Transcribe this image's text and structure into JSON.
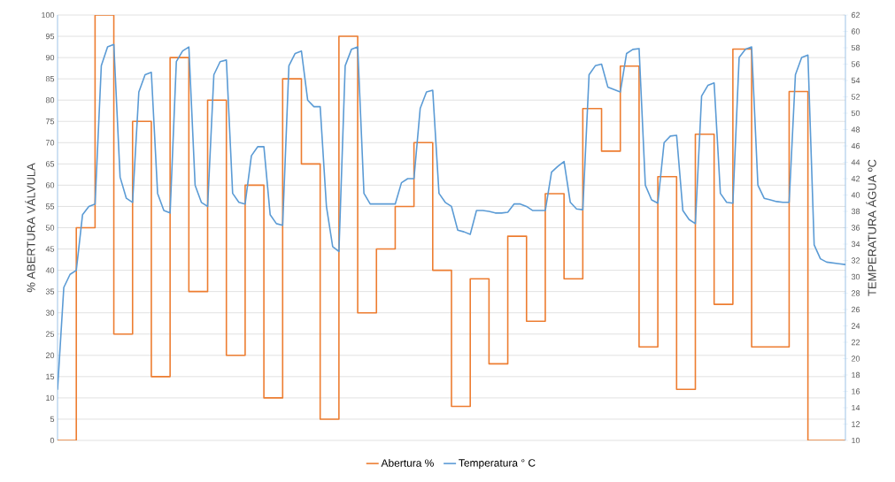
{
  "chart_data": {
    "type": "line",
    "ylabel": "% ABERTURA VÁLVULA",
    "y2label": "TEMPERATURA ÁGUA ºC",
    "categories": [
      null,
      null,
      null,
      null,
      null,
      null,
      null,
      null,
      null,
      null,
      null,
      null,
      null,
      null,
      null,
      null,
      null,
      null,
      null,
      null,
      null,
      null,
      null,
      null,
      null,
      null,
      null,
      null,
      null,
      null,
      null,
      null,
      null,
      null,
      null,
      null,
      null,
      null,
      null,
      null,
      null,
      null,
      null,
      null,
      null,
      null,
      null,
      null,
      null,
      null,
      null,
      null,
      null,
      null,
      null,
      null,
      null,
      null,
      null,
      null,
      null,
      null,
      null,
      null,
      null,
      null,
      null,
      null,
      null,
      null,
      null,
      null,
      null,
      null,
      null,
      null,
      null,
      null,
      null,
      null,
      null,
      null,
      null,
      null,
      null,
      null,
      null,
      null,
      null,
      null,
      null,
      null,
      null,
      null,
      null,
      null,
      null,
      null,
      null,
      null,
      null,
      null,
      null,
      null,
      null,
      null,
      null,
      null,
      null,
      null,
      null,
      null,
      null,
      null,
      null,
      null,
      null,
      null,
      null,
      null,
      null,
      null,
      null,
      null,
      null,
      null,
      null
    ],
    "series": [
      {
        "name": "Abertura %",
        "type": "step",
        "color": "#ed7d31",
        "values": [
          0,
          0,
          0,
          50,
          50,
          50,
          100,
          100,
          100,
          25,
          25,
          25,
          75,
          75,
          75,
          15,
          15,
          15,
          90,
          90,
          90,
          35,
          35,
          35,
          80,
          80,
          80,
          20,
          20,
          20,
          60,
          60,
          60,
          10,
          10,
          10,
          85,
          85,
          85,
          65,
          65,
          65,
          5,
          5,
          5,
          95,
          95,
          95,
          30,
          30,
          30,
          45,
          45,
          45,
          55,
          55,
          55,
          70,
          70,
          70,
          40,
          40,
          40,
          8,
          8,
          8,
          38,
          38,
          38,
          18,
          18,
          18,
          48,
          48,
          48,
          28,
          28,
          28,
          58,
          58,
          58,
          38,
          38,
          38,
          78,
          78,
          78,
          68,
          68,
          68,
          88,
          88,
          88,
          22,
          22,
          22,
          62,
          62,
          62,
          12,
          12,
          12,
          72,
          72,
          72,
          32,
          32,
          32,
          92,
          92,
          92,
          22,
          22,
          22,
          22,
          22,
          22,
          82,
          82,
          82,
          0,
          0,
          0,
          0,
          0,
          0,
          0
        ]
      },
      {
        "name": "Temperatura ° C",
        "axis": "y2",
        "color": "#5b9bd5",
        "values": [
          16.2,
          28.7,
          30.3,
          30.8,
          37.6,
          38.6,
          38.9,
          55.8,
          58.1,
          58.4,
          42.2,
          39.6,
          39.1,
          52.6,
          54.7,
          55.0,
          40.2,
          38.1,
          37.8,
          56.3,
          57.6,
          58.1,
          41.2,
          39.1,
          38.6,
          54.7,
          56.3,
          56.5,
          40.2,
          39.1,
          38.9,
          44.8,
          45.9,
          45.9,
          37.6,
          36.5,
          36.3,
          55.8,
          57.3,
          57.6,
          51.6,
          50.8,
          50.8,
          38.6,
          33.7,
          33.1,
          55.8,
          57.8,
          58.1,
          40.2,
          38.9,
          38.9,
          38.9,
          38.9,
          38.9,
          41.5,
          42.0,
          42.0,
          50.6,
          52.6,
          52.8,
          40.2,
          39.1,
          38.6,
          35.7,
          35.5,
          35.2,
          38.1,
          38.1,
          38.0,
          37.8,
          37.8,
          37.9,
          38.9,
          38.9,
          38.6,
          38.1,
          38.1,
          38.1,
          42.8,
          43.5,
          44.1,
          39.1,
          38.3,
          38.2,
          54.7,
          55.8,
          56.0,
          53.2,
          52.9,
          52.6,
          57.3,
          57.8,
          57.9,
          41.2,
          39.4,
          39.0,
          46.4,
          47.2,
          47.3,
          38.1,
          37.0,
          36.5,
          52.1,
          53.4,
          53.7,
          40.2,
          39.1,
          39.0,
          56.8,
          57.8,
          58.1,
          41.2,
          39.6,
          39.4,
          39.2,
          39.1,
          39.1,
          54.7,
          56.8,
          57.1,
          33.9,
          32.2,
          31.8,
          31.7,
          31.6,
          31.5
        ]
      }
    ],
    "ylim": [
      0,
      100
    ],
    "yticks": [
      0,
      5,
      10,
      15,
      20,
      25,
      30,
      35,
      40,
      45,
      50,
      55,
      60,
      65,
      70,
      75,
      80,
      85,
      90,
      95,
      100
    ],
    "y2lim": [
      10,
      62
    ],
    "y2ticks": [
      10,
      12,
      14,
      16,
      18,
      20,
      22,
      24,
      26,
      28,
      30,
      32,
      34,
      36,
      38,
      40,
      42,
      44,
      46,
      48,
      50,
      52,
      54,
      56,
      58,
      60,
      62
    ],
    "grid": "y",
    "legend": "bottom"
  }
}
